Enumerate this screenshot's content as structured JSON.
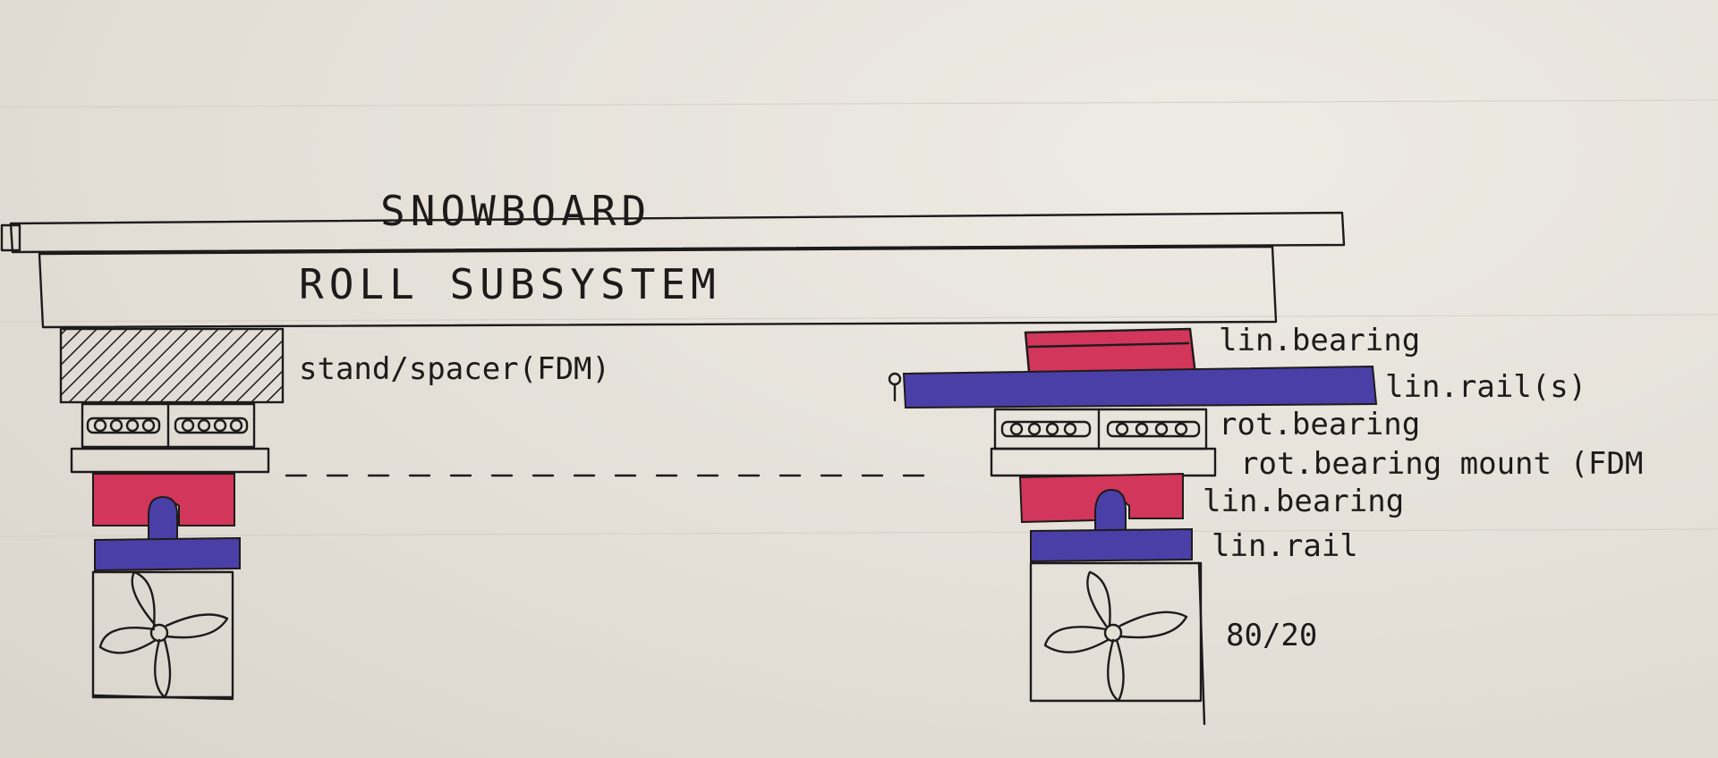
{
  "diagram": {
    "top_board_label": "SNOWBOARD",
    "subsystem_label": "ROLL SUBSYSTEM",
    "labels": {
      "stand": "stand/spacer(FDM)",
      "upper_lin_bearing": "lin.bearing",
      "upper_lin_rail": "lin.rail(s)",
      "rot_bearing": "rot.bearing",
      "rot_bearing_mount": "rot.bearing mount (FDM",
      "lower_lin_bearing": "lin.bearing",
      "lower_lin_rail": "lin.rail",
      "extrusion": "80/20"
    },
    "colors": {
      "linear_bearing": "#d2365a",
      "linear_rail": "#4a3fa6",
      "ink": "#1d1b1a"
    }
  }
}
